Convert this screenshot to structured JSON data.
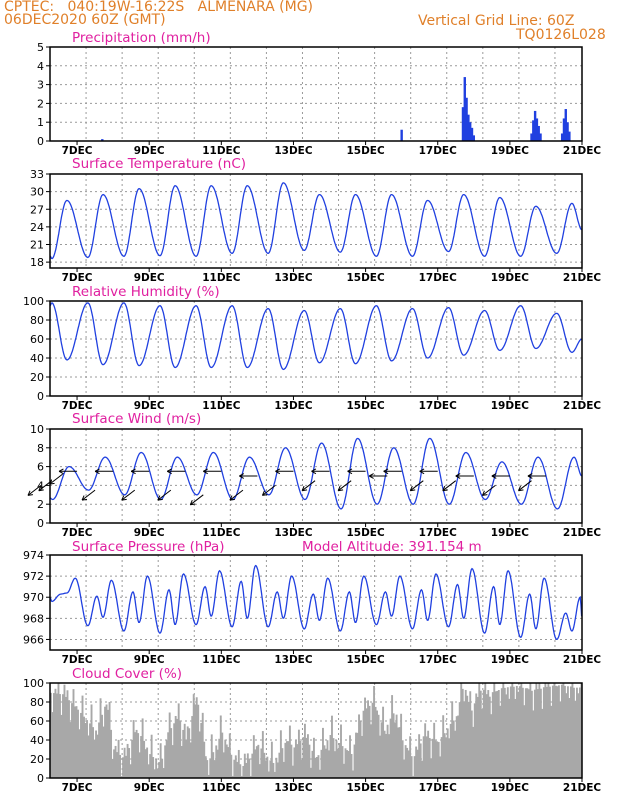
{
  "header": {
    "line1": "CPTEC:   040:19W-16:22S   ALMENARA (MG)",
    "line2": "06DEC2020 60Z (GMT)",
    "right1": "Vertical Grid Line: 60Z",
    "right2": "TQ0126L028"
  },
  "colors": {
    "header": "#e0802a",
    "title": "#e020a0",
    "line": "#2040e0",
    "bar": "#2040e0",
    "cloud": "#a8a8a8",
    "wind_arrow": "#000000"
  },
  "x_axis": {
    "start_day": 6,
    "start_hour": 6,
    "end_day": 21,
    "labels": [
      "7DEC",
      "9DEC",
      "11DEC",
      "13DEC",
      "15DEC",
      "17DEC",
      "19DEC",
      "21DEC"
    ]
  },
  "chart_data": [
    {
      "id": "precip",
      "type": "bar",
      "title": "Precipitation (mm/h)",
      "ylim": [
        0,
        5
      ],
      "yticks": [
        0,
        1,
        2,
        3,
        4,
        5
      ],
      "points": [
        [
          7.7,
          0.1
        ],
        [
          16.0,
          0.6
        ],
        [
          17.7,
          1.8
        ],
        [
          17.75,
          3.4
        ],
        [
          17.8,
          2.3
        ],
        [
          17.85,
          1.4
        ],
        [
          17.9,
          1.0
        ],
        [
          17.95,
          0.7
        ],
        [
          18.0,
          0.3
        ],
        [
          19.6,
          0.4
        ],
        [
          19.65,
          1.1
        ],
        [
          19.7,
          1.6
        ],
        [
          19.75,
          1.2
        ],
        [
          19.8,
          0.8
        ],
        [
          19.85,
          0.4
        ],
        [
          20.45,
          0.4
        ],
        [
          20.5,
          1.2
        ],
        [
          20.55,
          1.7
        ],
        [
          20.6,
          1.0
        ],
        [
          20.65,
          0.5
        ]
      ]
    },
    {
      "id": "temp",
      "type": "line",
      "title": "Surface Temperature (nC)",
      "ylim": [
        17,
        33
      ],
      "yticks": [
        18,
        21,
        24,
        27,
        30,
        33
      ],
      "cycles": [
        [
          18.6,
          28.5
        ],
        [
          18.8,
          29.5
        ],
        [
          19.0,
          30.5
        ],
        [
          19.1,
          31.0
        ],
        [
          19.0,
          31.0
        ],
        [
          19.5,
          31.0
        ],
        [
          19.5,
          31.5
        ],
        [
          20.0,
          29.5
        ],
        [
          19.7,
          29.5
        ],
        [
          19.0,
          29.5
        ],
        [
          19.0,
          28.5
        ],
        [
          19.8,
          29.5
        ],
        [
          19.0,
          29.0
        ],
        [
          19.0,
          27.5
        ],
        [
          19.5,
          28.0
        ],
        [
          20.5,
          26.5
        ],
        [
          21.0,
          27.5
        ],
        [
          22.0,
          28.5
        ]
      ],
      "end_value": 23.5
    },
    {
      "id": "rh",
      "type": "line",
      "title": "Relative Humidity (%)",
      "ylim": [
        0,
        100
      ],
      "yticks": [
        0,
        20,
        40,
        60,
        80,
        100
      ],
      "cycles": [
        [
          38,
          98
        ],
        [
          33,
          98
        ],
        [
          32,
          98
        ],
        [
          30,
          95
        ],
        [
          30,
          95
        ],
        [
          30,
          95
        ],
        [
          28,
          92
        ],
        [
          35,
          90
        ],
        [
          34,
          92
        ],
        [
          37,
          95
        ],
        [
          40,
          92
        ],
        [
          43,
          93
        ],
        [
          48,
          90
        ],
        [
          50,
          95
        ],
        [
          46,
          87
        ],
        [
          52,
          100
        ],
        [
          58,
          90
        ],
        [
          45,
          95
        ]
      ],
      "end_value": 60
    },
    {
      "id": "wind",
      "type": "line",
      "title": "Surface Wind (m/s)",
      "ylim": [
        0,
        10
      ],
      "yticks": [
        0,
        2,
        4,
        6,
        8,
        10
      ],
      "cycles": [
        [
          2.5,
          6.0
        ],
        [
          3.5,
          7.0
        ],
        [
          3.0,
          7.5
        ],
        [
          2.5,
          7.0
        ],
        [
          3.0,
          7.5
        ],
        [
          2.5,
          7.0
        ],
        [
          3.0,
          8.0
        ],
        [
          2.5,
          8.5
        ],
        [
          1.5,
          9.0
        ],
        [
          2.0,
          8.0
        ],
        [
          2.0,
          9.0
        ],
        [
          2.0,
          7.5
        ],
        [
          2.5,
          6.5
        ],
        [
          2.0,
          7.0
        ],
        [
          1.5,
          7.0
        ],
        [
          2.5,
          7.5
        ],
        [
          3.0,
          6.0
        ],
        [
          3.0,
          7.0
        ]
      ],
      "end_value": 5.0,
      "arrows": [
        [
          6.0,
          4.0,
          "sw"
        ],
        [
          6.3,
          4.5,
          "sw"
        ],
        [
          6.6,
          5.2,
          "sw"
        ],
        [
          7.0,
          5.5,
          "w"
        ],
        [
          7.5,
          3.5,
          "sw"
        ],
        [
          8.0,
          5.5,
          "w"
        ],
        [
          8.6,
          3.5,
          "sw"
        ],
        [
          9.0,
          5.5,
          "w"
        ],
        [
          9.6,
          3.5,
          "sw"
        ],
        [
          10.0,
          5.5,
          "w"
        ],
        [
          10.5,
          3.0,
          "sw"
        ],
        [
          11.0,
          5.5,
          "w"
        ],
        [
          11.6,
          3.5,
          "sw"
        ],
        [
          12.0,
          5.0,
          "w"
        ],
        [
          12.5,
          4.0,
          "sw"
        ],
        [
          13.0,
          5.5,
          "w"
        ],
        [
          13.6,
          4.5,
          "sw"
        ],
        [
          14.0,
          5.5,
          "w"
        ],
        [
          14.6,
          4.5,
          "sw"
        ],
        [
          15.0,
          5.5,
          "w"
        ],
        [
          15.6,
          5.0,
          "w"
        ],
        [
          16.0,
          5.5,
          "w"
        ],
        [
          16.6,
          4.5,
          "sw"
        ],
        [
          17.0,
          5.5,
          "w"
        ],
        [
          17.5,
          4.5,
          "sw"
        ],
        [
          18.0,
          5.0,
          "w"
        ],
        [
          18.6,
          4.0,
          "sw"
        ],
        [
          19.0,
          5.0,
          "w"
        ],
        [
          19.6,
          4.5,
          "sw"
        ],
        [
          20.0,
          5.0,
          "w"
        ]
      ]
    },
    {
      "id": "pressure",
      "type": "line",
      "title": "Surface Pressure (hPa)",
      "subtitle": "Model Altitude: 391.154 m",
      "ylim": [
        965,
        974
      ],
      "yticks": [
        966,
        968,
        970,
        972,
        974
      ],
      "lows": [
        969.6,
        967.3,
        966.8,
        966.6,
        967.4,
        967.2,
        967.2,
        967.0,
        966.8,
        967.4,
        967.0,
        967.2,
        966.6,
        966.2,
        966.0,
        965.2,
        965.0,
        965.2
      ],
      "highs": [
        971.8,
        971.6,
        972.0,
        972.2,
        972.5,
        973.0,
        972.0,
        971.8,
        972.0,
        972.0,
        972.2,
        972.7,
        972.5,
        971.8,
        970.0,
        969.0,
        968.5,
        967.8
      ],
      "end_value": 968.0
    },
    {
      "id": "cloud",
      "type": "bar",
      "title": "Cloud Cover (%)",
      "ylim": [
        0,
        100
      ],
      "yticks": [
        0,
        20,
        40,
        60,
        80,
        100
      ],
      "profile": [
        [
          6.2,
          90
        ],
        [
          6.6,
          88
        ],
        [
          7.0,
          72
        ],
        [
          7.5,
          50
        ],
        [
          7.8,
          80
        ],
        [
          8.0,
          30
        ],
        [
          8.3,
          20
        ],
        [
          8.6,
          50
        ],
        [
          8.8,
          42
        ],
        [
          9.0,
          25
        ],
        [
          9.3,
          15
        ],
        [
          9.5,
          48
        ],
        [
          9.8,
          65
        ],
        [
          10.0,
          40
        ],
        [
          10.3,
          85
        ],
        [
          10.6,
          15
        ],
        [
          11.0,
          48
        ],
        [
          11.3,
          20
        ],
        [
          11.6,
          12
        ],
        [
          12.0,
          35
        ],
        [
          12.4,
          15
        ],
        [
          12.8,
          40
        ],
        [
          13.0,
          32
        ],
        [
          13.3,
          45
        ],
        [
          13.6,
          20
        ],
        [
          14.0,
          45
        ],
        [
          14.3,
          35
        ],
        [
          14.6,
          25
        ],
        [
          14.9,
          70
        ],
        [
          15.2,
          80
        ],
        [
          15.5,
          50
        ],
        [
          15.8,
          72
        ],
        [
          16.0,
          40
        ],
        [
          16.3,
          20
        ],
        [
          16.6,
          45
        ],
        [
          17.0,
          38
        ],
        [
          17.3,
          55
        ],
        [
          17.5,
          65
        ],
        [
          17.7,
          100
        ],
        [
          17.9,
          70
        ],
        [
          18.2,
          95
        ],
        [
          18.4,
          85
        ],
        [
          18.5,
          90
        ],
        [
          18.8,
          95
        ],
        [
          19.2,
          97
        ],
        [
          19.6,
          92
        ],
        [
          20.0,
          96
        ],
        [
          20.4,
          98
        ],
        [
          20.8,
          95
        ],
        [
          21.0,
          95
        ]
      ]
    }
  ]
}
